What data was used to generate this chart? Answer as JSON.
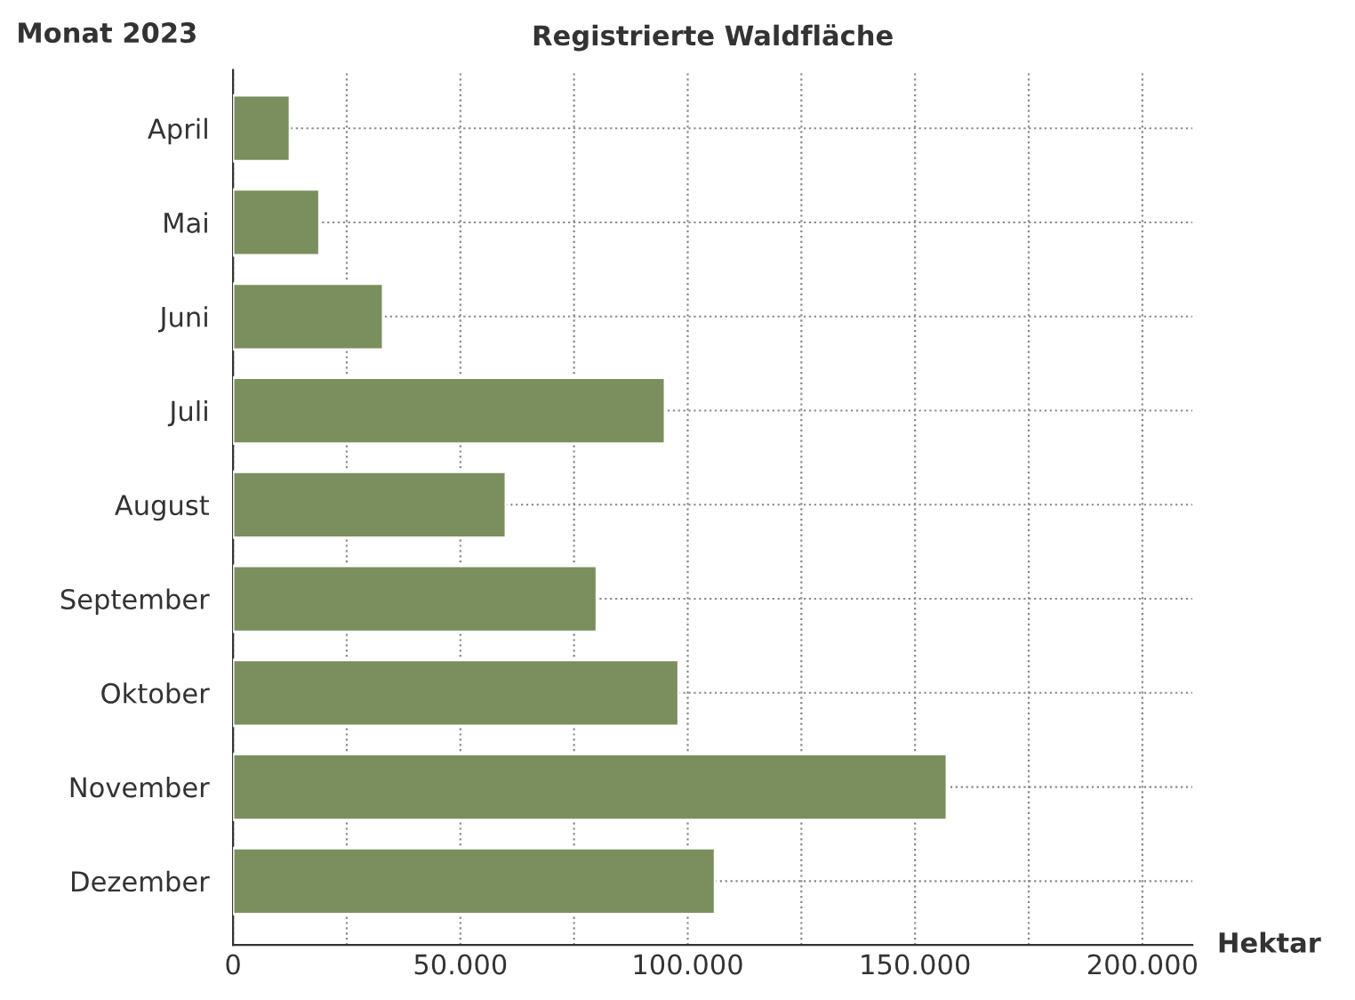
{
  "chart_data": {
    "type": "bar",
    "orientation": "horizontal",
    "title": "Registrierte Waldfläche",
    "ylabel": "Monat 2023",
    "xlabel": "Hektar",
    "categories": [
      "April",
      "Mai",
      "Juni",
      "Juli",
      "August",
      "September",
      "Oktober",
      "November",
      "Dezember"
    ],
    "values": [
      12500,
      19000,
      33000,
      95000,
      60000,
      80000,
      98000,
      157000,
      106000
    ],
    "color": "#7b8f5e",
    "xlim": [
      0,
      211000
    ],
    "xticks": [
      0,
      {
        "value": 25000,
        "label": null
      },
      {
        "value": 50000,
        "label": "50.000"
      },
      {
        "value": 75000,
        "label": null
      },
      {
        "value": 100000,
        "label": "100.000"
      },
      {
        "value": 125000,
        "label": null
      },
      {
        "value": 150000,
        "label": "150.000"
      },
      {
        "value": 175000,
        "label": null
      },
      {
        "value": 200000,
        "label": "200.000"
      }
    ],
    "grid": true
  }
}
